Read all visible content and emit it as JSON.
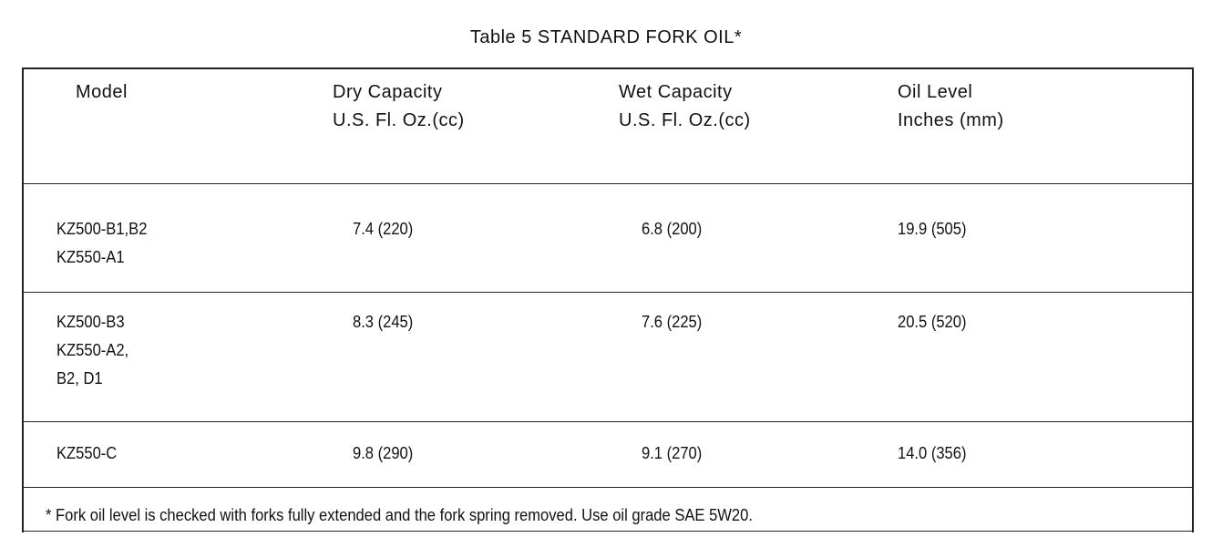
{
  "title": "Table 5 STANDARD FORK OIL*",
  "table": {
    "header": [
      [
        "Model"
      ],
      [
        "Dry Capacity",
        "U.S. Fl. Oz.(cc)"
      ],
      [
        "Wet Capacity",
        "U.S. Fl. Oz.(cc)"
      ],
      [
        "Oil Level",
        "Inches (mm)"
      ]
    ],
    "rows": [
      [
        [
          "KZ500-B1,B2",
          "KZ550-A1"
        ],
        [
          "7.4 (220)"
        ],
        [
          "6.8 (200)"
        ],
        [
          "19.9 (505)"
        ]
      ],
      [
        [
          "KZ500-B3",
          "KZ550-A2,",
          "B2, D1"
        ],
        [
          "8.3 (245)"
        ],
        [
          "7.6 (225)"
        ],
        [
          "20.5 (520)"
        ]
      ],
      [
        [
          "KZ550-C"
        ],
        [
          "9.8 (290)"
        ],
        [
          "9.1 (270)"
        ],
        [
          "14.0 (356)"
        ]
      ]
    ],
    "footnote": "* Fork oil level is checked with forks fully extended and the fork spring removed. Use oil grade SAE 5W20."
  }
}
